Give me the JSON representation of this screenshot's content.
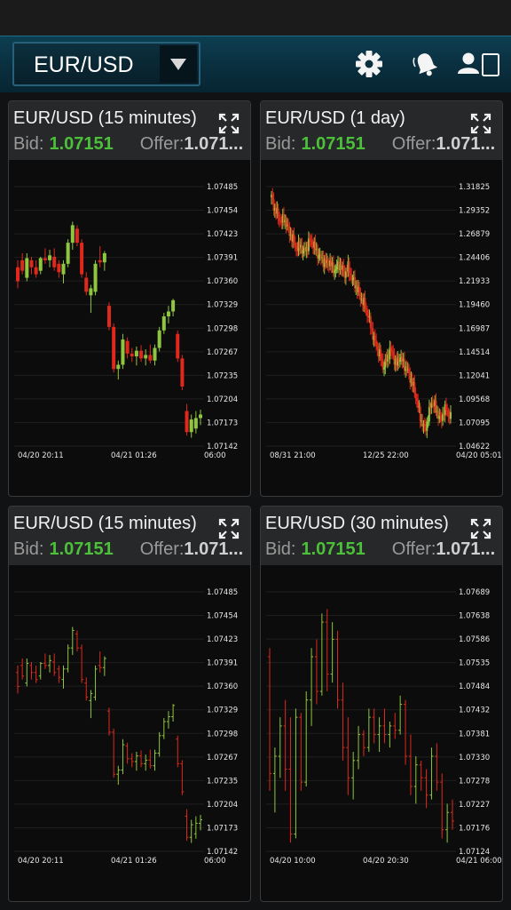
{
  "toolbar": {
    "pair": "EUR/USD",
    "icons": [
      "gear-icon",
      "bell-icon",
      "account-icon"
    ]
  },
  "colors": {
    "up": "#8ec63f",
    "down": "#e0281c",
    "bid": "#4cc03a"
  },
  "panels": [
    {
      "pair": "EUR/USD",
      "interval": "(15 minutes)",
      "bid_label": "Bid:",
      "bid": "1.07151",
      "offer_label": "Offer:",
      "offer": "1.071...",
      "chart_data": {
        "type": "candlestick",
        "y_ticks": [
          "1.07485",
          "1.07454",
          "1.07423",
          "1.07391",
          "1.07360",
          "1.07329",
          "1.07298",
          "1.07267",
          "1.07235",
          "1.07204",
          "1.07173",
          "1.07142"
        ],
        "x_ticks": [
          "04/20 20:11",
          "04/21 01:26",
          "06:00"
        ],
        "ylim": [
          1.0713,
          1.075
        ],
        "style": "filled",
        "candles": [
          [
            1.07385,
            1.07395,
            1.07355,
            1.07365
          ],
          [
            1.07395,
            1.07405,
            1.07375,
            1.0738
          ],
          [
            1.0737,
            1.07405,
            1.07365,
            1.07398
          ],
          [
            1.07395,
            1.074,
            1.07375,
            1.07385
          ],
          [
            1.07385,
            1.07395,
            1.0737,
            1.07375
          ],
          [
            1.0738,
            1.074,
            1.07375,
            1.07398
          ],
          [
            1.07398,
            1.07412,
            1.0739,
            1.07395
          ],
          [
            1.07395,
            1.0741,
            1.07385,
            1.07402
          ],
          [
            1.074,
            1.07412,
            1.0738,
            1.07385
          ],
          [
            1.0739,
            1.07395,
            1.0737,
            1.07378
          ],
          [
            1.07375,
            1.07395,
            1.07362,
            1.0739
          ],
          [
            1.0739,
            1.07425,
            1.07385,
            1.0742
          ],
          [
            1.0742,
            1.0745,
            1.0741,
            1.07445
          ],
          [
            1.0744,
            1.07445,
            1.07415,
            1.0742
          ],
          [
            1.0742,
            1.07425,
            1.0737,
            1.07375
          ],
          [
            1.0737,
            1.07378,
            1.07345,
            1.0735
          ],
          [
            1.07345,
            1.0736,
            1.0732,
            1.07355
          ],
          [
            1.0735,
            1.07395,
            1.07345,
            1.0739
          ],
          [
            1.07395,
            1.07415,
            1.07385,
            1.07392
          ],
          [
            1.07392,
            1.07408,
            1.0738,
            1.07405
          ],
          [
            1.0733,
            1.07335,
            1.07295,
            1.073
          ],
          [
            1.073,
            1.07305,
            1.07235,
            1.0724
          ],
          [
            1.0724,
            1.07252,
            1.07225,
            1.07246
          ],
          [
            1.07246,
            1.0729,
            1.0724,
            1.07282
          ],
          [
            1.0728,
            1.07285,
            1.07255,
            1.07262
          ],
          [
            1.07262,
            1.0727,
            1.0725,
            1.07258
          ],
          [
            1.07258,
            1.07272,
            1.07245,
            1.07266
          ],
          [
            1.07266,
            1.07274,
            1.0725,
            1.07255
          ],
          [
            1.07255,
            1.07268,
            1.07245,
            1.0726
          ],
          [
            1.0726,
            1.07275,
            1.07248,
            1.07252
          ],
          [
            1.07252,
            1.07275,
            1.07245,
            1.0727
          ],
          [
            1.0727,
            1.073,
            1.07265,
            1.07295
          ],
          [
            1.07295,
            1.0732,
            1.0729,
            1.07315
          ],
          [
            1.07315,
            1.0733,
            1.07305,
            1.07322
          ],
          [
            1.07322,
            1.0734,
            1.07315,
            1.07338
          ],
          [
            1.0729,
            1.07295,
            1.0725,
            1.07255
          ],
          [
            1.07255,
            1.0726,
            1.0721,
            1.07215
          ],
          [
            1.0718,
            1.0719,
            1.07145,
            1.0715
          ],
          [
            1.0715,
            1.07175,
            1.07142,
            1.07168
          ],
          [
            1.07155,
            1.0718,
            1.07148,
            1.0717
          ],
          [
            1.0717,
            1.07182,
            1.0716,
            1.07175
          ]
        ]
      }
    },
    {
      "pair": "EUR/USD",
      "interval": "(1 day)",
      "bid_label": "Bid:",
      "bid": "1.07151",
      "offer_label": "Offer:",
      "offer": "1.071...",
      "chart_data": {
        "type": "candlestick",
        "y_ticks": [
          "1.31825",
          "1.29352",
          "1.26879",
          "1.24406",
          "1.21933",
          "1.19460",
          "1.16987",
          "1.14514",
          "1.12041",
          "1.09568",
          "1.07095",
          "1.04622"
        ],
        "x_ticks": [
          "08/31 21:00",
          "12/25 22:00",
          "04/20 05:01"
        ],
        "ylim": [
          1.04,
          1.33
        ],
        "style": "filled",
        "series_path": [
          1.318,
          1.305,
          1.298,
          1.29,
          1.295,
          1.284,
          1.276,
          1.268,
          1.26,
          1.265,
          1.256,
          1.262,
          1.27,
          1.266,
          1.258,
          1.252,
          1.248,
          1.244,
          1.246,
          1.24,
          1.236,
          1.244,
          1.238,
          1.232,
          1.24,
          1.228,
          1.222,
          1.214,
          1.205,
          1.198,
          1.188,
          1.175,
          1.16,
          1.15,
          1.14,
          1.128,
          1.136,
          1.148,
          1.142,
          1.13,
          1.14,
          1.134,
          1.128,
          1.12,
          1.11,
          1.098,
          1.08,
          1.066,
          1.058,
          1.072,
          1.09,
          1.085,
          1.076,
          1.068,
          1.082,
          1.078,
          1.072
        ]
      }
    },
    {
      "pair": "EUR/USD",
      "interval": "(15 minutes)",
      "bid_label": "Bid:",
      "bid": "1.07151",
      "offer_label": "Offer:",
      "offer": "1.071...",
      "chart_data": {
        "type": "ohlc",
        "y_ticks": [
          "1.07485",
          "1.07454",
          "1.07423",
          "1.07391",
          "1.07360",
          "1.07329",
          "1.07298",
          "1.07267",
          "1.07235",
          "1.07204",
          "1.07173",
          "1.07142"
        ],
        "x_ticks": [
          "04/20 20:11",
          "04/21 01:26",
          "06:00"
        ],
        "ylim": [
          1.0713,
          1.075
        ],
        "style": "bars",
        "reuse_candles_of": 0
      }
    },
    {
      "pair": "EUR/USD",
      "interval": "(30 minutes)",
      "bid_label": "Bid:",
      "bid": "1.07151",
      "offer_label": "Offer:",
      "offer": "1.071...",
      "chart_data": {
        "type": "ohlc",
        "y_ticks": [
          "1.07689",
          "1.07638",
          "1.07586",
          "1.07535",
          "1.07484",
          "1.07432",
          "1.07381",
          "1.07330",
          "1.07278",
          "1.07227",
          "1.07176",
          "1.07124"
        ],
        "x_ticks": [
          "04/20 10:00",
          "04/20 20:30",
          "04/21 06:00"
        ],
        "ylim": [
          1.0711,
          1.0771
        ],
        "style": "bars",
        "bars": [
          [
            1.0756,
            1.0758,
            1.0725,
            1.0729
          ],
          [
            1.0729,
            1.0735,
            1.072,
            1.0733
          ],
          [
            1.0733,
            1.0742,
            1.0728,
            1.074
          ],
          [
            1.074,
            1.0746,
            1.0725,
            1.073
          ],
          [
            1.073,
            1.0742,
            1.0713,
            1.0715
          ],
          [
            1.0715,
            1.0744,
            1.0714,
            1.0742
          ],
          [
            1.0742,
            1.0743,
            1.0725,
            1.0727
          ],
          [
            1.0727,
            1.0748,
            1.0726,
            1.0746
          ],
          [
            1.0746,
            1.0758,
            1.074,
            1.0756
          ],
          [
            1.0756,
            1.076,
            1.0745,
            1.0748
          ],
          [
            1.0748,
            1.0766,
            1.0747,
            1.0764
          ],
          [
            1.0764,
            1.0767,
            1.0748,
            1.0752
          ],
          [
            1.0752,
            1.0764,
            1.075,
            1.076
          ],
          [
            1.076,
            1.0762,
            1.0744,
            1.0746
          ],
          [
            1.0746,
            1.075,
            1.0732,
            1.0735
          ],
          [
            1.0735,
            1.0742,
            1.0724,
            1.0728
          ],
          [
            1.0728,
            1.0734,
            1.0723,
            1.0732
          ],
          [
            1.0732,
            1.074,
            1.073,
            1.0738
          ],
          [
            1.0738,
            1.0739,
            1.0733,
            1.0735
          ],
          [
            1.0735,
            1.0744,
            1.0734,
            1.0742
          ],
          [
            1.0742,
            1.0744,
            1.0736,
            1.0738
          ],
          [
            1.0738,
            1.0742,
            1.0734,
            1.074
          ],
          [
            1.074,
            1.0744,
            1.0736,
            1.0738
          ],
          [
            1.0738,
            1.0741,
            1.0735,
            1.074
          ],
          [
            1.074,
            1.0743,
            1.0737,
            1.0739
          ],
          [
            1.0739,
            1.0747,
            1.0738,
            1.0745
          ],
          [
            1.0745,
            1.0746,
            1.0731,
            1.0733
          ],
          [
            1.0733,
            1.0738,
            1.0724,
            1.0726
          ],
          [
            1.0726,
            1.0733,
            1.0722,
            1.0731
          ],
          [
            1.0731,
            1.0732,
            1.0725,
            1.0728
          ],
          [
            1.0728,
            1.073,
            1.0721,
            1.0724
          ],
          [
            1.0724,
            1.0735,
            1.0723,
            1.0733
          ],
          [
            1.0733,
            1.0736,
            1.0725,
            1.0727
          ],
          [
            1.0727,
            1.0729,
            1.0714,
            1.0716
          ],
          [
            1.0716,
            1.0722,
            1.0713,
            1.072
          ],
          [
            1.072,
            1.0723,
            1.0716,
            1.0718
          ]
        ]
      }
    }
  ]
}
